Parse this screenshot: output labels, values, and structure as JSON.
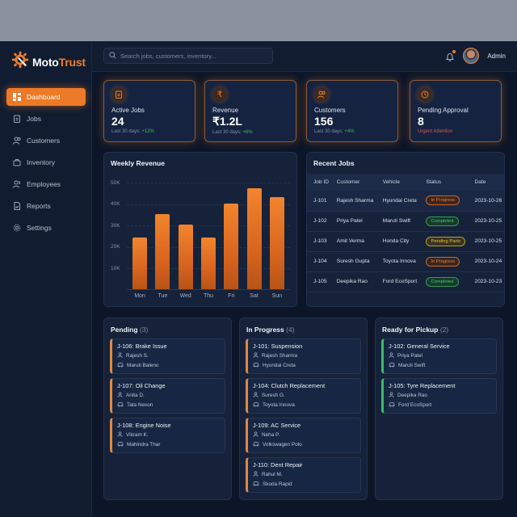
{
  "app": {
    "brand_part1": "Moto",
    "brand_part2": "Trust",
    "accent": "#f07d2a"
  },
  "header": {
    "search_placeholder": "Search jobs, customers, inventory...",
    "user": "Admin"
  },
  "sidebar": {
    "items": [
      {
        "label": "Dashboard",
        "icon": "dashboard-icon",
        "active": true
      },
      {
        "label": "Jobs",
        "icon": "clipboard-icon"
      },
      {
        "label": "Customers",
        "icon": "users-icon"
      },
      {
        "label": "Inventory",
        "icon": "box-icon"
      },
      {
        "label": "Employees",
        "icon": "team-icon"
      },
      {
        "label": "Reports",
        "icon": "report-icon"
      },
      {
        "label": "Settings",
        "icon": "gear-icon"
      }
    ]
  },
  "stats": [
    {
      "label": "Active Jobs",
      "value": "24",
      "sub": "Last 30 days: ",
      "delta": "+12%",
      "icon": "clipboard-icon"
    },
    {
      "label": "Revenue",
      "value": "₹1.2L",
      "sub": "Last 30 days: ",
      "delta": "+6%",
      "icon": "rupee-icon"
    },
    {
      "label": "Customers",
      "value": "156",
      "sub": "Last 30 days: ",
      "delta": "+4%",
      "icon": "users-icon"
    },
    {
      "label": "Pending Approval",
      "value": "8",
      "sub": "Urgent Attention",
      "delta": "",
      "icon": "clock-icon"
    }
  ],
  "chart_data": {
    "type": "bar",
    "title": "Weekly Revenue",
    "categories": [
      "Mon",
      "Tue",
      "Wed",
      "Thu",
      "Fri",
      "Sat",
      "Sun"
    ],
    "values": [
      24000,
      35000,
      30000,
      24000,
      40000,
      47000,
      43000
    ],
    "yticks": [
      "50K",
      "40K",
      "30K",
      "20K",
      "10K"
    ],
    "ylim": [
      0,
      50000
    ],
    "xlabel": "",
    "ylabel": "",
    "grid": true,
    "bar_color": "#f07d2a"
  },
  "recent_jobs": {
    "title": "Recent Jobs",
    "columns": [
      "Job ID",
      "Customer",
      "Vehicle",
      "Status",
      "Date"
    ],
    "rows": [
      {
        "id": "J-101",
        "customer": "Rajesh Sharma",
        "vehicle": "Hyundai Creta",
        "status": "In Progress",
        "date": "2023-10-26"
      },
      {
        "id": "J-102",
        "customer": "Priya Patel",
        "vehicle": "Maruti Swift",
        "status": "Completed",
        "date": "2023-10-25"
      },
      {
        "id": "J-103",
        "customer": "Amit Verma",
        "vehicle": "Honda City",
        "status": "Pending Parts",
        "date": "2023-10-25"
      },
      {
        "id": "J-104",
        "customer": "Suresh Gupta",
        "vehicle": "Toyota Innova",
        "status": "In Progress",
        "date": "2023-10-24"
      },
      {
        "id": "J-105",
        "customer": "Deepika Rao",
        "vehicle": "Ford EcoSport",
        "status": "Completed",
        "date": "2023-10-23"
      }
    ]
  },
  "kanban": [
    {
      "title": "Pending",
      "count": "(3)",
      "cards": [
        {
          "title": "J-106: Brake Issue",
          "customer": "Rajesh S.",
          "vehicle": "Maruti Baleno"
        },
        {
          "title": "J-107: Oil Change",
          "customer": "Anita D.",
          "vehicle": "Tata Nexon"
        },
        {
          "title": "J-108: Engine Noise",
          "customer": "Vikram K.",
          "vehicle": "Mahindra Thar"
        }
      ]
    },
    {
      "title": "In Progress",
      "count": "(4)",
      "cards": [
        {
          "title": "J-101: Suspension",
          "customer": "Rajesh Sharma",
          "vehicle": "Hyundai Creta"
        },
        {
          "title": "J-104: Clutch Replacement",
          "customer": "Suresh G.",
          "vehicle": "Toyota Innova"
        },
        {
          "title": "J-109: AC Service",
          "customer": "Neha P.",
          "vehicle": "Volkswagen Polo"
        },
        {
          "title": "J-110: Dent Repair",
          "customer": "Rahul M.",
          "vehicle": "Skoda Rapid"
        }
      ]
    },
    {
      "title": "Ready for Pickup",
      "count": "(2)",
      "cards": [
        {
          "title": "J-102: General Service",
          "customer": "Priya Patel",
          "vehicle": "Maruti Swift"
        },
        {
          "title": "J-105: Tyre Replacement",
          "customer": "Deepika Rao",
          "vehicle": "Ford EcoSport"
        }
      ]
    }
  ]
}
